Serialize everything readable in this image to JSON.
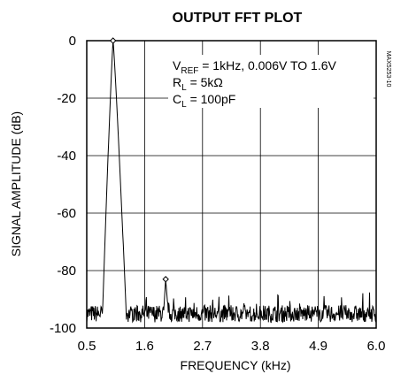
{
  "chart_data": {
    "type": "line",
    "title": "OUTPUT FFT PLOT",
    "xlabel": "FREQUENCY (kHz)",
    "ylabel": "SIGNAL AMPLITUDE (dB)",
    "xlim": [
      0.5,
      6.0
    ],
    "ylim": [
      -100,
      0
    ],
    "x_ticks": [
      "0.5",
      "1.6",
      "2.7",
      "3.8",
      "4.9",
      "6.0"
    ],
    "y_ticks": [
      "0",
      "-20",
      "-40",
      "-60",
      "-80",
      "-100"
    ],
    "grid": true,
    "annotation": {
      "line1_prefix": "V",
      "line1_sub": "REF",
      "line1_rest": " = 1kHz, 0.006V TO 1.6V",
      "line2_prefix": "R",
      "line2_sub": "L",
      "line2_rest": " = 5kΩ",
      "line3_prefix": "C",
      "line3_sub": "L",
      "line3_rest": " = 100pF"
    },
    "code_label": "MAX5253-10",
    "peaks": [
      {
        "x": 1.0,
        "y": 0
      },
      {
        "x": 2.0,
        "y": -83
      }
    ],
    "noise_floor": -95,
    "main_lobe": {
      "x0": 0.8,
      "x1": 1.25
    },
    "harmonic_lobe": {
      "x0": 1.96,
      "x1": 2.05
    }
  }
}
